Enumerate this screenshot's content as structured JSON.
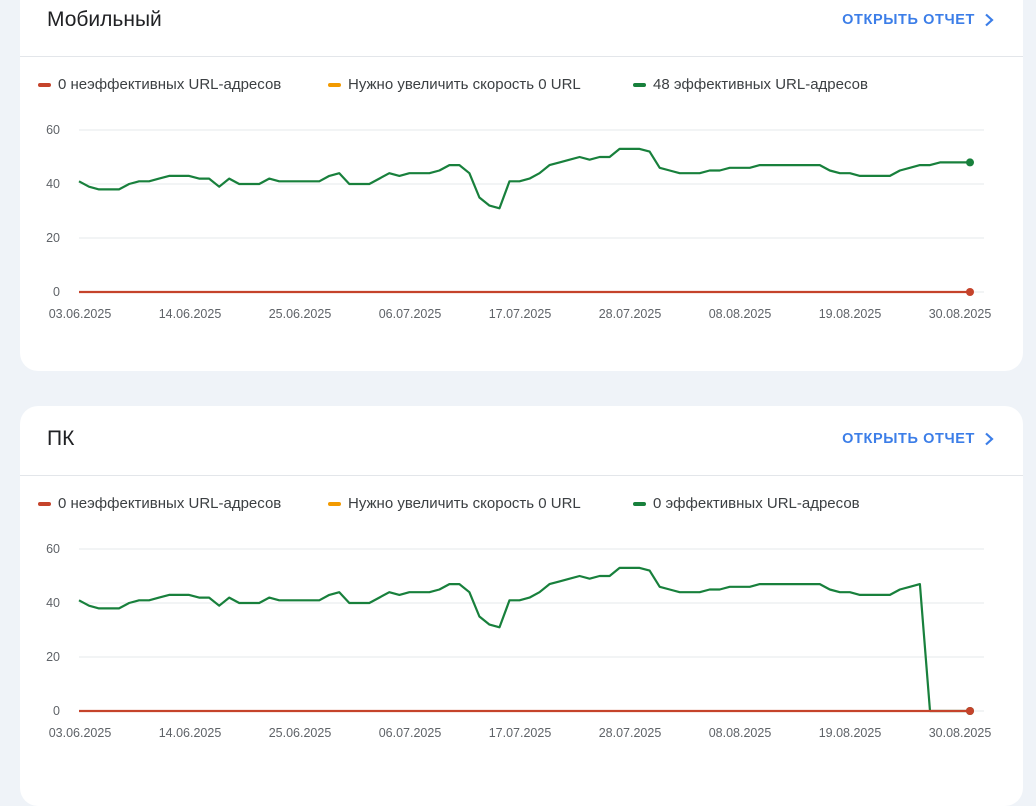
{
  "colors": {
    "poor": "#c5432b",
    "needs_improvement": "#f29a00",
    "good": "#18803c",
    "link": "#3c7ee8"
  },
  "mobile": {
    "title": "Мобильный",
    "open_report": "ОТКРЫТЬ ОТЧЕТ",
    "legend": [
      {
        "label": "0 неэффективных URL-адресов",
        "color": "#c5432b"
      },
      {
        "label": "Нужно увеличить скорость 0 URL",
        "color": "#f29a00"
      },
      {
        "label": "48 эффективных URL-адресов",
        "color": "#18803c"
      }
    ],
    "chart_data": {
      "type": "line",
      "x_ticks": [
        "03.06.2025",
        "14.06.2025",
        "25.06.2025",
        "06.07.2025",
        "17.07.2025",
        "28.07.2025",
        "08.08.2025",
        "19.08.2025",
        "30.08.2025"
      ],
      "y_ticks": [
        0,
        20,
        40,
        60
      ],
      "ylim": [
        0,
        60
      ],
      "series": [
        {
          "name": "48 эффективных URL-адресов",
          "color": "#18803c",
          "values": [
            41,
            39,
            38,
            38,
            38,
            40,
            41,
            41,
            42,
            43,
            43,
            43,
            42,
            42,
            39,
            42,
            40,
            40,
            40,
            42,
            41,
            41,
            41,
            41,
            41,
            43,
            44,
            40,
            40,
            40,
            42,
            44,
            43,
            44,
            44,
            44,
            45,
            47,
            47,
            44,
            35,
            32,
            31,
            41,
            41,
            42,
            44,
            47,
            48,
            49,
            50,
            49,
            50,
            50,
            53,
            53,
            53,
            52,
            46,
            45,
            44,
            44,
            44,
            45,
            45,
            46,
            46,
            46,
            47,
            47,
            47,
            47,
            47,
            47,
            47,
            45,
            44,
            44,
            43,
            43,
            43,
            43,
            45,
            46,
            47,
            47,
            48,
            48,
            48,
            48
          ]
        },
        {
          "name": "0 неэффективных URL-адресов",
          "color": "#c5432b",
          "values": [
            0,
            0,
            0,
            0,
            0,
            0,
            0,
            0,
            0,
            0,
            0,
            0,
            0,
            0,
            0,
            0,
            0,
            0,
            0,
            0,
            0,
            0,
            0,
            0,
            0,
            0,
            0,
            0,
            0,
            0,
            0,
            0,
            0,
            0,
            0,
            0,
            0,
            0,
            0,
            0,
            0,
            0,
            0,
            0,
            0,
            0,
            0,
            0,
            0,
            0,
            0,
            0,
            0,
            0,
            0,
            0,
            0,
            0,
            0,
            0,
            0,
            0,
            0,
            0,
            0,
            0,
            0,
            0,
            0,
            0,
            0,
            0,
            0,
            0,
            0,
            0,
            0,
            0,
            0,
            0,
            0,
            0,
            0,
            0,
            0,
            0,
            0,
            0,
            0,
            0
          ]
        }
      ]
    }
  },
  "pc": {
    "title": "ПК",
    "open_report": "ОТКРЫТЬ ОТЧЕТ",
    "legend": [
      {
        "label": "0 неэффективных URL-адресов",
        "color": "#c5432b"
      },
      {
        "label": "Нужно увеличить скорость 0 URL",
        "color": "#f29a00"
      },
      {
        "label": "0 эффективных URL-адресов",
        "color": "#18803c"
      }
    ],
    "chart_data": {
      "type": "line",
      "x_ticks": [
        "03.06.2025",
        "14.06.2025",
        "25.06.2025",
        "06.07.2025",
        "17.07.2025",
        "28.07.2025",
        "08.08.2025",
        "19.08.2025",
        "30.08.2025"
      ],
      "y_ticks": [
        0,
        20,
        40,
        60
      ],
      "ylim": [
        0,
        60
      ],
      "series": [
        {
          "name": "0 эффективных URL-адресов",
          "color": "#18803c",
          "values": [
            41,
            39,
            38,
            38,
            38,
            40,
            41,
            41,
            42,
            43,
            43,
            43,
            42,
            42,
            39,
            42,
            40,
            40,
            40,
            42,
            41,
            41,
            41,
            41,
            41,
            43,
            44,
            40,
            40,
            40,
            42,
            44,
            43,
            44,
            44,
            44,
            45,
            47,
            47,
            44,
            35,
            32,
            31,
            41,
            41,
            42,
            44,
            47,
            48,
            49,
            50,
            49,
            50,
            50,
            53,
            53,
            53,
            52,
            46,
            45,
            44,
            44,
            44,
            45,
            45,
            46,
            46,
            46,
            47,
            47,
            47,
            47,
            47,
            47,
            47,
            45,
            44,
            44,
            43,
            43,
            43,
            43,
            45,
            46,
            47,
            0,
            0,
            0,
            0,
            0
          ]
        },
        {
          "name": "0 неэффективных URL-адресов",
          "color": "#c5432b",
          "values": [
            0,
            0,
            0,
            0,
            0,
            0,
            0,
            0,
            0,
            0,
            0,
            0,
            0,
            0,
            0,
            0,
            0,
            0,
            0,
            0,
            0,
            0,
            0,
            0,
            0,
            0,
            0,
            0,
            0,
            0,
            0,
            0,
            0,
            0,
            0,
            0,
            0,
            0,
            0,
            0,
            0,
            0,
            0,
            0,
            0,
            0,
            0,
            0,
            0,
            0,
            0,
            0,
            0,
            0,
            0,
            0,
            0,
            0,
            0,
            0,
            0,
            0,
            0,
            0,
            0,
            0,
            0,
            0,
            0,
            0,
            0,
            0,
            0,
            0,
            0,
            0,
            0,
            0,
            0,
            0,
            0,
            0,
            0,
            0,
            0,
            0,
            0,
            0,
            0,
            0
          ]
        }
      ]
    }
  }
}
